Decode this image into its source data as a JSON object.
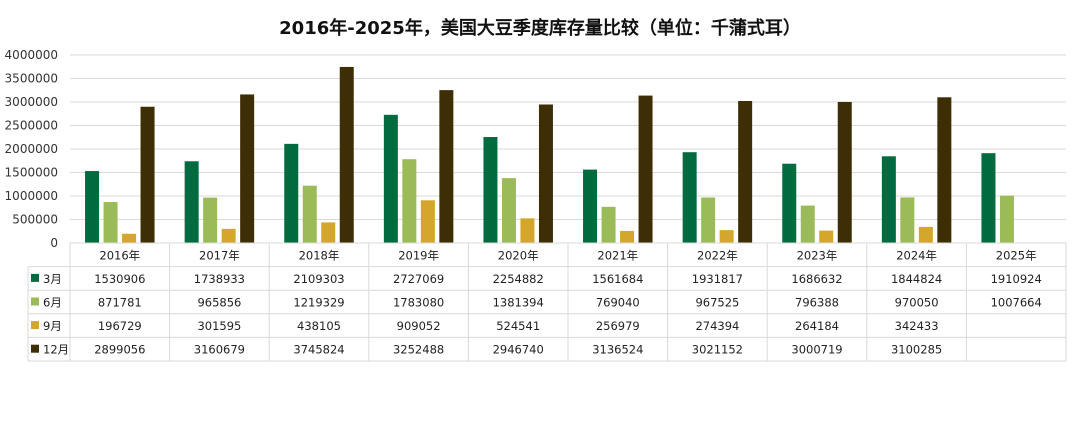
{
  "chart_data": {
    "type": "bar",
    "title": "2016年-2025年，美国大豆季度库存量比较（单位：千蒲式耳）",
    "categories": [
      "2016年",
      "2017年",
      "2018年",
      "2019年",
      "2020年",
      "2021年",
      "2022年",
      "2023年",
      "2024年",
      "2025年"
    ],
    "ylim": [
      0,
      4000000
    ],
    "yticks": [
      "0",
      "500000",
      "1000000",
      "1500000",
      "2000000",
      "2500000",
      "3000000",
      "3500000",
      "4000000"
    ],
    "legend_placement": "bottom-table",
    "series": [
      {
        "name": "3月",
        "color": "#006b3f",
        "values": [
          1530906,
          1738933,
          2109303,
          2727069,
          2254882,
          1561684,
          1931817,
          1686632,
          1844824,
          1910924
        ]
      },
      {
        "name": "6月",
        "color": "#9bbb59",
        "values": [
          871781,
          965856,
          1219329,
          1783080,
          1381394,
          769040,
          967525,
          796388,
          970050,
          1007664
        ]
      },
      {
        "name": "9月",
        "color": "#d4a72c",
        "values": [
          196729,
          301595,
          438105,
          909052,
          524541,
          256979,
          274394,
          264184,
          342433,
          null
        ]
      },
      {
        "name": "12月",
        "color": "#3d2e05",
        "values": [
          2899056,
          3160679,
          3745824,
          3252488,
          2946740,
          3136524,
          3021152,
          3000719,
          3100285,
          null
        ]
      }
    ]
  }
}
